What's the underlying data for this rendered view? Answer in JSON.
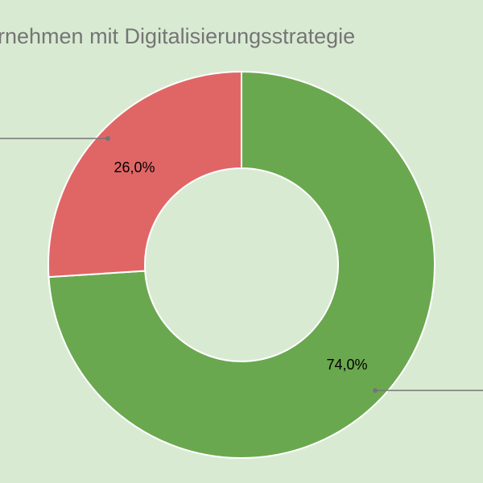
{
  "chart_data": {
    "type": "pie",
    "donut": true,
    "title": "rnehmen mit Digitalisierungsstrategie",
    "slices": [
      {
        "value": 74.0,
        "label": "74,0%",
        "color": "#6aa84f"
      },
      {
        "value": 26.0,
        "label": "26,0%",
        "color": "#e06666"
      }
    ],
    "background": "#d9ead3",
    "title_color": "#757575",
    "leader_color": "#757575"
  }
}
